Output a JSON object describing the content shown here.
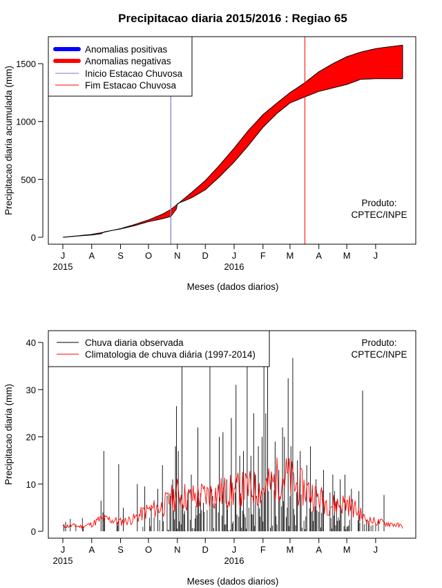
{
  "title": "Precipitacao diaria 2015/2016 : Regiao 65",
  "colors": {
    "positive": "#0000ff",
    "negative": "#ff0000",
    "start_line": "#7777cc",
    "end_line": "#ff0000",
    "observed": "#000000",
    "climatology": "#ff0000"
  },
  "chart_data": [
    {
      "type": "area",
      "title": "Precipitacao diaria 2015/2016 : Regiao 65",
      "xlabel": "Meses (dados diarios)",
      "ylabel": "Precipitacao diaria acumulada (mm)",
      "x_unit": "day index (0 = 1 Jul 2015)",
      "xlim": [
        0,
        365
      ],
      "ylim": [
        0,
        1650
      ],
      "y_ticks": [
        0,
        500,
        1000,
        1500
      ],
      "month_ticks": [
        {
          "day": 0,
          "label": "J"
        },
        {
          "day": 31,
          "label": "A"
        },
        {
          "day": 62,
          "label": "S"
        },
        {
          "day": 92,
          "label": "O"
        },
        {
          "day": 123,
          "label": "N"
        },
        {
          "day": 153,
          "label": "D"
        },
        {
          "day": 184,
          "label": "J"
        },
        {
          "day": 215,
          "label": "F"
        },
        {
          "day": 244,
          "label": "M"
        },
        {
          "day": 275,
          "label": "A"
        },
        {
          "day": 305,
          "label": "M"
        },
        {
          "day": 336,
          "label": "J"
        }
      ],
      "year_labels": [
        {
          "day": 0,
          "label": "2015"
        },
        {
          "day": 184,
          "label": "2016"
        }
      ],
      "legend": [
        {
          "label": "Anomalias positivas",
          "color": "#0000ff",
          "style": "thick"
        },
        {
          "label": "Anomalias negativas",
          "color": "#ff0000",
          "style": "thick"
        },
        {
          "label": "Inicio Estacao Chuvosa",
          "color": "#7777cc",
          "style": "thin"
        },
        {
          "label": "Fim Estacao Chuvosa",
          "color": "#ff0000",
          "style": "thin"
        }
      ],
      "legend_position": "top-left",
      "rainy_season_start_day": 116,
      "rainy_season_end_day": 260,
      "series": [
        {
          "name": "Climatologia acumulada",
          "days": [
            0,
            15,
            31,
            45,
            62,
            77,
            92,
            107,
            116,
            123,
            138,
            153,
            168,
            184,
            199,
            215,
            230,
            244,
            259,
            275,
            290,
            305,
            320,
            336,
            350,
            365
          ],
          "values": [
            0,
            12,
            25,
            45,
            75,
            110,
            150,
            200,
            240,
            285,
            385,
            490,
            620,
            770,
            920,
            1060,
            1160,
            1250,
            1330,
            1430,
            1500,
            1560,
            1600,
            1630,
            1645,
            1660
          ]
        },
        {
          "name": "Observada acumulada",
          "days": [
            0,
            15,
            31,
            41,
            45,
            62,
            77,
            92,
            107,
            116,
            122,
            123,
            138,
            153,
            168,
            184,
            199,
            215,
            230,
            244,
            259,
            275,
            290,
            305,
            320,
            322,
            336,
            350,
            365
          ],
          "values": [
            0,
            10,
            20,
            30,
            48,
            72,
            100,
            135,
            160,
            180,
            245,
            290,
            340,
            410,
            520,
            650,
            790,
            950,
            1070,
            1160,
            1210,
            1260,
            1290,
            1320,
            1365,
            1365,
            1370,
            1370,
            1370
          ]
        }
      ],
      "annotation": [
        "Produto:",
        "CPTEC/INPE"
      ]
    },
    {
      "type": "bar",
      "title": "",
      "xlabel": "Meses (dados diarios)",
      "ylabel": "Precipitacao diaria (mm)",
      "xlim": [
        0,
        365
      ],
      "ylim": [
        0,
        40
      ],
      "y_ticks": [
        0,
        10,
        20,
        30,
        40
      ],
      "legend": [
        {
          "label": "Chuva diaria observada",
          "color": "#000000"
        },
        {
          "label": "Climatologia de chuva diária (1997-2014)",
          "color": "#ff0000"
        }
      ],
      "legend_position": "top-left",
      "annotation": [
        "Produto:",
        "CPTEC/INPE"
      ],
      "observed_peaks": [
        {
          "day": 1,
          "value": 1.5
        },
        {
          "day": 3,
          "value": 2.0
        },
        {
          "day": 22,
          "value": 1.0
        },
        {
          "day": 41,
          "value": 6.5
        },
        {
          "day": 43,
          "value": 4.0
        },
        {
          "day": 44,
          "value": 17.0
        },
        {
          "day": 58,
          "value": 2.0
        },
        {
          "day": 60,
          "value": 14.2
        },
        {
          "day": 65,
          "value": 5.0
        },
        {
          "day": 80,
          "value": 10.0
        },
        {
          "day": 88,
          "value": 9.5
        },
        {
          "day": 95,
          "value": 5.0
        },
        {
          "day": 102,
          "value": 9.0
        },
        {
          "day": 107,
          "value": 14.0
        },
        {
          "day": 115,
          "value": 8.0
        },
        {
          "day": 118,
          "value": 11.0
        },
        {
          "day": 121,
          "value": 18.0
        },
        {
          "day": 122,
          "value": 26.5
        },
        {
          "day": 124,
          "value": 17.0
        },
        {
          "day": 128,
          "value": 35.0
        },
        {
          "day": 138,
          "value": 12.0
        },
        {
          "day": 145,
          "value": 22.0
        },
        {
          "day": 151,
          "value": 6.0
        },
        {
          "day": 158,
          "value": 35.0
        },
        {
          "day": 168,
          "value": 20.0
        },
        {
          "day": 172,
          "value": 21.0
        },
        {
          "day": 176,
          "value": 11.0
        },
        {
          "day": 181,
          "value": 24.0
        },
        {
          "day": 186,
          "value": 31.0
        },
        {
          "day": 190,
          "value": 16.0
        },
        {
          "day": 194,
          "value": 17.0
        },
        {
          "day": 198,
          "value": 35.0
        },
        {
          "day": 202,
          "value": 16.0
        },
        {
          "day": 205,
          "value": 25.0
        },
        {
          "day": 207,
          "value": 12.0
        },
        {
          "day": 210,
          "value": 18.0
        },
        {
          "day": 214,
          "value": 20.0
        },
        {
          "day": 216,
          "value": 35.0
        },
        {
          "day": 218,
          "value": 25.0
        },
        {
          "day": 220,
          "value": 38.0
        },
        {
          "day": 224,
          "value": 12.0
        },
        {
          "day": 228,
          "value": 19.0
        },
        {
          "day": 232,
          "value": 13.0
        },
        {
          "day": 236,
          "value": 22.0
        },
        {
          "day": 238,
          "value": 20.0
        },
        {
          "day": 242,
          "value": 32.4
        },
        {
          "day": 245,
          "value": 18.0
        },
        {
          "day": 247,
          "value": 36.7
        },
        {
          "day": 252,
          "value": 15.0
        },
        {
          "day": 255,
          "value": 17.0
        },
        {
          "day": 262,
          "value": 14.0
        },
        {
          "day": 266,
          "value": 18.0
        },
        {
          "day": 272,
          "value": 11.0
        },
        {
          "day": 280,
          "value": 13.0
        },
        {
          "day": 290,
          "value": 12.0
        },
        {
          "day": 298,
          "value": 11.0
        },
        {
          "day": 303,
          "value": 12.0
        },
        {
          "day": 310,
          "value": 9.0
        },
        {
          "day": 318,
          "value": 8.5
        },
        {
          "day": 322,
          "value": 29.8
        },
        {
          "day": 345,
          "value": 7.7
        }
      ],
      "climatology_points": {
        "days": [
          0,
          10,
          20,
          31,
          40,
          50,
          62,
          75,
          92,
          105,
          115,
          123,
          135,
          150,
          165,
          184,
          195,
          215,
          225,
          235,
          244,
          250,
          260,
          275,
          290,
          305,
          315,
          325,
          336,
          345,
          355,
          365
        ],
        "values": [
          1.0,
          1.2,
          1.0,
          1.5,
          2.5,
          2.5,
          2.0,
          2.5,
          4.5,
          5.0,
          6.5,
          8.0,
          7.0,
          7.5,
          8.0,
          8.5,
          9.0,
          9.0,
          10.0,
          12.0,
          11.0,
          9.5,
          9.0,
          7.0,
          5.5,
          6.0,
          4.5,
          2.5,
          2.0,
          1.8,
          1.5,
          1.0
        ]
      }
    }
  ]
}
